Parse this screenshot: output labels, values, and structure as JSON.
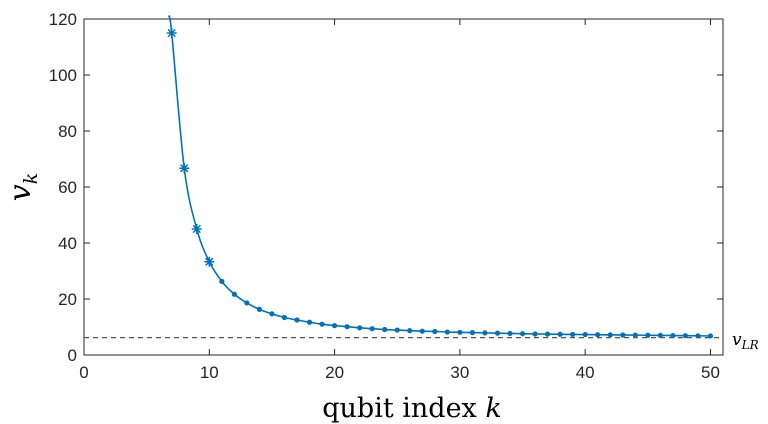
{
  "chart_data": {
    "type": "line",
    "title": "",
    "xlabel": "qubit index",
    "xlabel_var": "k",
    "ylabel_var": "v",
    "ylabel_sub": "k",
    "xlim": [
      0,
      51
    ],
    "ylim": [
      0,
      120
    ],
    "xticks": [
      0,
      10,
      20,
      30,
      40,
      50
    ],
    "yticks": [
      0,
      20,
      40,
      60,
      80,
      100,
      120
    ],
    "grid": false,
    "colors": {
      "series": "#0072BD",
      "reference": "#555555",
      "axes": "#262626"
    },
    "series": [
      {
        "marker": "dot",
        "x": [
          11,
          12,
          13,
          14,
          15,
          16,
          17,
          18,
          19,
          20,
          21,
          22,
          23,
          24,
          25,
          26,
          27,
          28,
          29,
          30,
          31,
          32,
          33,
          34,
          35,
          36,
          37,
          38,
          39,
          40,
          41,
          42,
          43,
          44,
          45,
          46,
          47,
          48,
          49,
          50
        ],
        "y": [
          26.3,
          21.7,
          18.6,
          16.3,
          14.7,
          13.4,
          12.5,
          11.7,
          11.0,
          10.5,
          10.1,
          9.7,
          9.4,
          9.1,
          8.9,
          8.7,
          8.5,
          8.4,
          8.2,
          8.1,
          8.0,
          7.9,
          7.8,
          7.7,
          7.6,
          7.5,
          7.45,
          7.4,
          7.35,
          7.3,
          7.25,
          7.2,
          7.15,
          7.1,
          7.05,
          7.0,
          6.95,
          6.9,
          6.85,
          6.8
        ]
      },
      {
        "marker": "star",
        "x": [
          7,
          8,
          9,
          10
        ],
        "y": [
          115.0,
          66.7,
          45.0,
          33.3
        ]
      }
    ],
    "curve_start": {
      "x": 6.75,
      "y": 121
    },
    "reference_line": {
      "y": 6.2,
      "label_var": "v",
      "label_sub": "LR",
      "style": "dashed"
    }
  }
}
